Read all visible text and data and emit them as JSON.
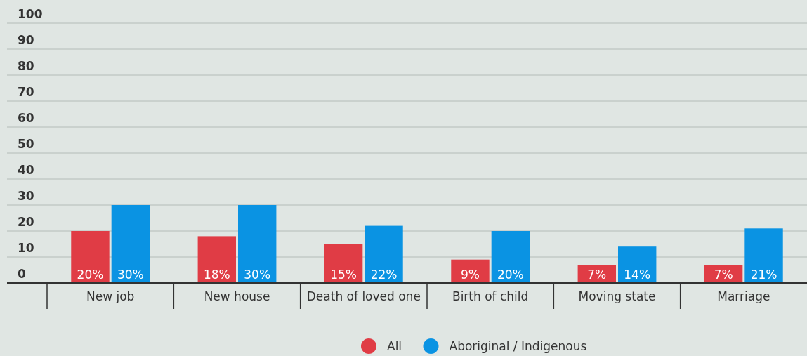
{
  "chart_data": {
    "type": "bar",
    "categories": [
      "New job",
      "New house",
      "Death of loved one",
      "Birth of child",
      "Moving state",
      "Marriage"
    ],
    "series": [
      {
        "name": "All",
        "color": "#e03c45",
        "values": [
          20,
          18,
          15,
          9,
          7,
          7
        ],
        "value_labels": [
          "20%",
          "18%",
          "15%",
          "9%",
          "7%",
          "7%"
        ]
      },
      {
        "name": "Aboriginal / Indigenous",
        "color": "#0a93e3",
        "values": [
          30,
          30,
          22,
          20,
          14,
          21
        ],
        "value_labels": [
          "30%",
          "30%",
          "22%",
          "20%",
          "14%",
          "21%"
        ]
      }
    ],
    "ylim": [
      0,
      100
    ],
    "yticks": [
      0,
      10,
      20,
      30,
      40,
      50,
      60,
      70,
      80,
      90,
      100
    ],
    "grid": "y",
    "legend": "bottom"
  }
}
